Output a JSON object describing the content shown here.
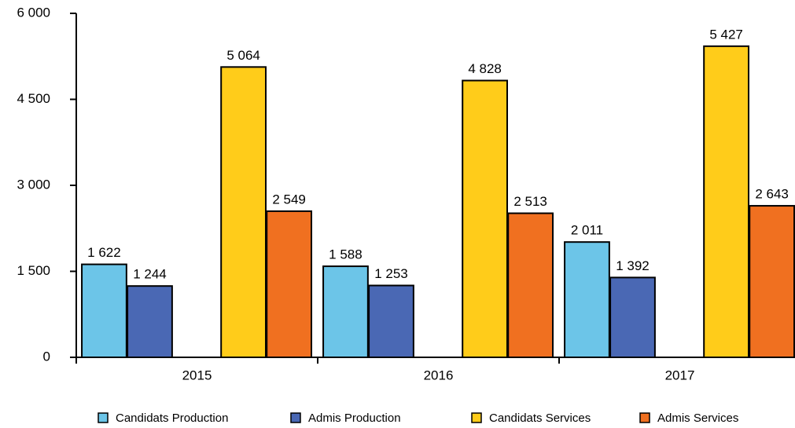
{
  "chart_data": {
    "type": "bar",
    "categories": [
      "2015",
      "2016",
      "2017"
    ],
    "series": [
      {
        "name": "Candidats Production",
        "color": "#6cc5e8",
        "values": [
          1622,
          1588,
          2011
        ],
        "value_labels": [
          "1 622",
          "1 588",
          "2 011"
        ]
      },
      {
        "name": "Admis Production",
        "color": "#4a68b4",
        "values": [
          1244,
          1253,
          1392
        ],
        "value_labels": [
          "1 244",
          "1 253",
          "1 392"
        ]
      },
      {
        "name": "Candidats Services",
        "color": "#ffcc1a",
        "values": [
          5064,
          4828,
          5427
        ],
        "value_labels": [
          "5 064",
          "4 828",
          "5 427"
        ]
      },
      {
        "name": "Admis Services",
        "color": "#f07020",
        "values": [
          2549,
          2513,
          2643
        ],
        "value_labels": [
          "2 549",
          "2 513",
          "2 643"
        ]
      }
    ],
    "ylim": [
      0,
      6000
    ],
    "yticks": [
      0,
      {
        "value": 1500,
        "label": "1 500"
      },
      {
        "value": 3000,
        "label": "3 000"
      },
      {
        "value": 4500,
        "label": "4 500"
      },
      {
        "value": 6000,
        "label": "6 000"
      }
    ],
    "legend": "bottom"
  }
}
